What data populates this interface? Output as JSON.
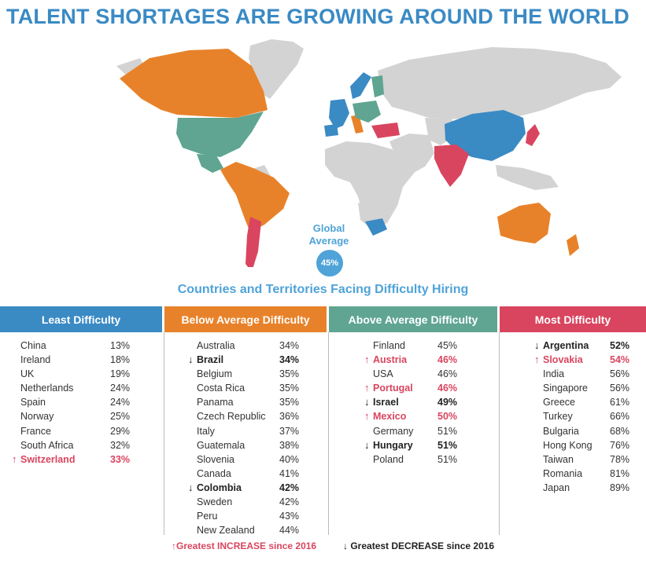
{
  "title": "TALENT SHORTAGES ARE GROWING AROUND THE WORLD",
  "global": {
    "label_line1": "Global",
    "label_line2": "Average",
    "value": "45%"
  },
  "subtitle": "Countries and Territories Facing Difficulty Hiring",
  "colors": {
    "least": "#3a8ac4",
    "below": "#e8822a",
    "above": "#5fa591",
    "most": "#d9455f",
    "nodata": "#d3d3d3",
    "increase": "#d9455f"
  },
  "columns": [
    {
      "header": "Least Difficulty",
      "rows": [
        {
          "name": "China",
          "pct": "13%",
          "trend": ""
        },
        {
          "name": "Ireland",
          "pct": "18%",
          "trend": ""
        },
        {
          "name": "UK",
          "pct": "19%",
          "trend": ""
        },
        {
          "name": "Netherlands",
          "pct": "24%",
          "trend": ""
        },
        {
          "name": "Spain",
          "pct": "24%",
          "trend": ""
        },
        {
          "name": "Norway",
          "pct": "25%",
          "trend": ""
        },
        {
          "name": "France",
          "pct": "29%",
          "trend": ""
        },
        {
          "name": "South Africa",
          "pct": "32%",
          "trend": ""
        },
        {
          "name": "Switzerland",
          "pct": "33%",
          "trend": "up"
        }
      ]
    },
    {
      "header": "Below Average Difficulty",
      "rows": [
        {
          "name": "Australia",
          "pct": "34%",
          "trend": ""
        },
        {
          "name": "Brazil",
          "pct": "34%",
          "trend": "down"
        },
        {
          "name": "Belgium",
          "pct": "35%",
          "trend": ""
        },
        {
          "name": "Costa Rica",
          "pct": "35%",
          "trend": ""
        },
        {
          "name": "Panama",
          "pct": "35%",
          "trend": ""
        },
        {
          "name": "Czech Republic",
          "pct": "36%",
          "trend": ""
        },
        {
          "name": "Italy",
          "pct": "37%",
          "trend": ""
        },
        {
          "name": "Guatemala",
          "pct": "38%",
          "trend": ""
        },
        {
          "name": "Slovenia",
          "pct": "40%",
          "trend": ""
        },
        {
          "name": "Canada",
          "pct": "41%",
          "trend": ""
        },
        {
          "name": "Colombia",
          "pct": "42%",
          "trend": "down"
        },
        {
          "name": "Sweden",
          "pct": "42%",
          "trend": ""
        },
        {
          "name": "Peru",
          "pct": "43%",
          "trend": ""
        },
        {
          "name": "New Zealand",
          "pct": "44%",
          "trend": ""
        }
      ]
    },
    {
      "header": "Above Average Difficulty",
      "rows": [
        {
          "name": "Finland",
          "pct": "45%",
          "trend": ""
        },
        {
          "name": "Austria",
          "pct": "46%",
          "trend": "up"
        },
        {
          "name": "USA",
          "pct": "46%",
          "trend": ""
        },
        {
          "name": "Portugal",
          "pct": "46%",
          "trend": "up"
        },
        {
          "name": "Israel",
          "pct": "49%",
          "trend": "down"
        },
        {
          "name": "Mexico",
          "pct": "50%",
          "trend": "up"
        },
        {
          "name": "Germany",
          "pct": "51%",
          "trend": ""
        },
        {
          "name": "Hungary",
          "pct": "51%",
          "trend": "down"
        },
        {
          "name": "Poland",
          "pct": "51%",
          "trend": ""
        }
      ]
    },
    {
      "header": "Most Difficulty",
      "rows": [
        {
          "name": "Argentina",
          "pct": "52%",
          "trend": "down"
        },
        {
          "name": "Slovakia",
          "pct": "54%",
          "trend": "up"
        },
        {
          "name": "India",
          "pct": "56%",
          "trend": ""
        },
        {
          "name": "Singapore",
          "pct": "56%",
          "trend": ""
        },
        {
          "name": "Greece",
          "pct": "61%",
          "trend": ""
        },
        {
          "name": "Turkey",
          "pct": "66%",
          "trend": ""
        },
        {
          "name": "Bulgaria",
          "pct": "68%",
          "trend": ""
        },
        {
          "name": "Hong Kong",
          "pct": "76%",
          "trend": ""
        },
        {
          "name": "Taiwan",
          "pct": "78%",
          "trend": ""
        },
        {
          "name": "Romania",
          "pct": "81%",
          "trend": ""
        },
        {
          "name": "Japan",
          "pct": "89%",
          "trend": ""
        }
      ]
    }
  ],
  "legend": {
    "increase": "Greatest INCREASE since 2016",
    "decrease": "Greatest DECREASE since 2016"
  }
}
